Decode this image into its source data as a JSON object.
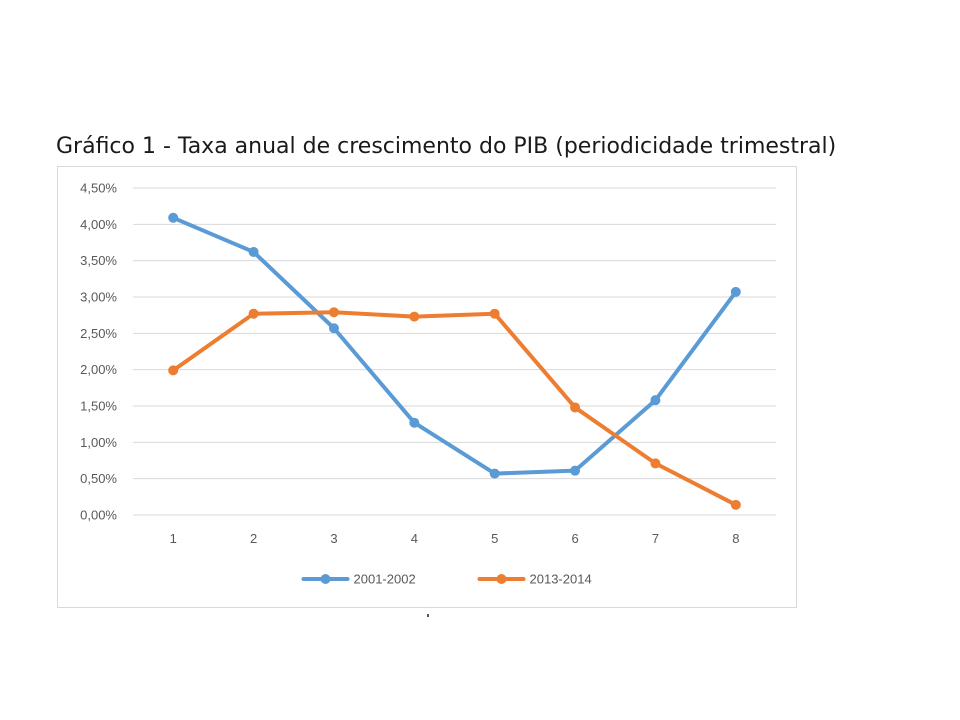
{
  "chart_data": {
    "type": "line",
    "title": "Gráfico 1 - Taxa anual de crescimento do PIB (periodicidade trimestral)",
    "xlabel": "",
    "ylabel": "",
    "categories": [
      "1",
      "2",
      "3",
      "4",
      "5",
      "6",
      "7",
      "8"
    ],
    "y_ticks": [
      "0,00%",
      "0,50%",
      "1,00%",
      "1,50%",
      "2,00%",
      "2,50%",
      "3,00%",
      "3,50%",
      "4,00%",
      "4,50%"
    ],
    "ylim": [
      0,
      4.5
    ],
    "grid": true,
    "legend_position": "bottom",
    "series": [
      {
        "name": "2001-2002",
        "color": "#5b9bd5",
        "values": [
          4.09,
          3.62,
          2.57,
          1.27,
          0.57,
          0.61,
          1.58,
          3.07
        ]
      },
      {
        "name": "2013-2014",
        "color": "#ed7d31",
        "values": [
          1.99,
          2.77,
          2.79,
          2.73,
          2.77,
          1.48,
          0.71,
          0.14
        ]
      }
    ]
  }
}
